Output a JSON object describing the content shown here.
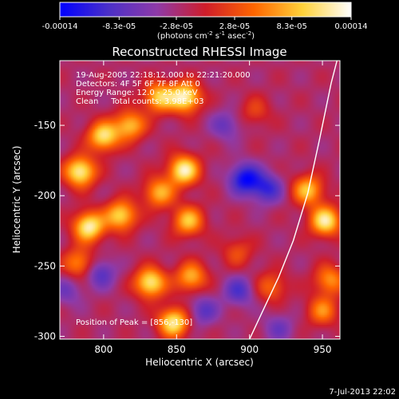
{
  "chart_data": {
    "type": "heatmap",
    "title": "Reconstructed RHESSI Image",
    "xlabel": "Heliocentric X (arcsec)",
    "ylabel": "Heliocentric Y (arcsec)",
    "xlim": [
      770,
      962
    ],
    "ylim": [
      -302,
      -104
    ],
    "x_ticks": [
      800,
      850,
      900,
      950
    ],
    "x_tick_labels": [
      "800",
      "850",
      "900",
      "950"
    ],
    "y_ticks": [
      -150,
      -200,
      -250,
      -300
    ],
    "y_tick_labels": [
      "-150",
      "-200",
      "-250",
      "-300"
    ],
    "colorbar": {
      "range": [
        -0.00014,
        0.00014
      ],
      "tick_values": [
        -0.00014,
        -8.3e-05,
        -2.8e-05,
        2.8e-05,
        8.3e-05,
        0.00014
      ],
      "tick_labels": [
        "-0.00014",
        "-8.3e-05",
        "-2.8e-05",
        "2.8e-05",
        "8.3e-05",
        "0.00014"
      ],
      "unit_label": "(photons cm-2 s-1 asec-2)",
      "colors": [
        "#0000ff",
        "#4b30c8",
        "#8e3aa8",
        "#cf1d2a",
        "#ff6600",
        "#ffd23a",
        "#ffffff"
      ]
    },
    "annotations": [
      "19-Aug-2005 22:18:12.000 to 22:21:20.000",
      "Detectors: 4F 5F 6F 7F 8F  Att 0",
      "Energy Range: 12.0 - 25.0 keV",
      "Clean     Total counts: 3.98E+03"
    ],
    "peak": {
      "label": "Position of Peak = [856,-130]",
      "x": 856,
      "y": -130
    },
    "limb_curve": [
      [
        900,
        -302
      ],
      [
        910,
        -280
      ],
      [
        920,
        -258
      ],
      [
        930,
        -232
      ],
      [
        940,
        -198
      ],
      [
        948,
        -160
      ],
      [
        956,
        -120
      ],
      [
        960,
        -104
      ]
    ],
    "sources": [
      {
        "x": 784,
        "y": -183,
        "v": 1.0
      },
      {
        "x": 800,
        "y": -158,
        "v": 0.9
      },
      {
        "x": 818,
        "y": -150,
        "v": 0.75
      },
      {
        "x": 838,
        "y": -130,
        "v": 0.8
      },
      {
        "x": 856,
        "y": -130,
        "v": 1.0
      },
      {
        "x": 855,
        "y": -182,
        "v": 1.0
      },
      {
        "x": 838,
        "y": -198,
        "v": 0.7
      },
      {
        "x": 790,
        "y": -222,
        "v": 1.0
      },
      {
        "x": 812,
        "y": -214,
        "v": 0.85
      },
      {
        "x": 783,
        "y": -248,
        "v": 0.6
      },
      {
        "x": 832,
        "y": -262,
        "v": 0.95
      },
      {
        "x": 858,
        "y": -218,
        "v": 0.75
      },
      {
        "x": 860,
        "y": -258,
        "v": 0.7
      },
      {
        "x": 848,
        "y": -290,
        "v": 0.95
      },
      {
        "x": 940,
        "y": -196,
        "v": 0.75
      },
      {
        "x": 952,
        "y": -218,
        "v": 0.95
      },
      {
        "x": 955,
        "y": -260,
        "v": 0.6
      },
      {
        "x": 950,
        "y": -282,
        "v": 0.55
      },
      {
        "x": 915,
        "y": -265,
        "v": 0.45
      },
      {
        "x": 892,
        "y": -240,
        "v": 0.35
      },
      {
        "x": 904,
        "y": -140,
        "v": 0.3
      },
      {
        "x": 798,
        "y": -255,
        "v": -0.45
      },
      {
        "x": 775,
        "y": -268,
        "v": -0.3
      },
      {
        "x": 897,
        "y": -188,
        "v": -0.75
      },
      {
        "x": 912,
        "y": -195,
        "v": -0.55
      },
      {
        "x": 893,
        "y": -268,
        "v": -0.45
      },
      {
        "x": 868,
        "y": -282,
        "v": -0.4
      },
      {
        "x": 920,
        "y": -294,
        "v": -0.3
      },
      {
        "x": 884,
        "y": -150,
        "v": -0.35
      }
    ]
  },
  "timestamp": "7-Jul-2013 22:02"
}
